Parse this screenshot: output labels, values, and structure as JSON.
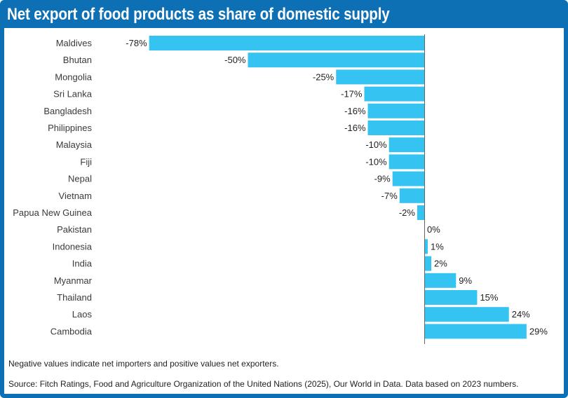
{
  "header": {
    "title": "Net export of food products as share of domestic supply"
  },
  "footer": {
    "note": "Negative values indicate net importers and positive values net exporters.",
    "source": "Source: Fitch Ratings, Food and Agriculture Organization of the United Nations (2025), Our World in Data. Data based on 2023 numbers."
  },
  "colors": {
    "bar": "#35c3f2",
    "frame": "#0d6fb4",
    "axis": "#666666"
  },
  "chart_data": {
    "type": "bar",
    "orientation": "horizontal",
    "title": "Net export of food products as share of domestic supply",
    "xlabel": "",
    "ylabel": "",
    "unit": "%",
    "xlim": [
      -78,
      29
    ],
    "grid": false,
    "legend": "none",
    "categories": [
      "Maldives",
      "Bhutan",
      "Mongolia",
      "Sri Lanka",
      "Bangladesh",
      "Philippines",
      "Malaysia",
      "Fiji",
      "Nepal",
      "Vietnam",
      "Papua New Guinea",
      "Pakistan",
      "Indonesia",
      "India",
      "Myanmar",
      "Thailand",
      "Laos",
      "Cambodia"
    ],
    "values": [
      -78,
      -50,
      -25,
      -17,
      -16,
      -16,
      -10,
      -10,
      -9,
      -7,
      -2,
      0,
      1,
      2,
      9,
      15,
      24,
      29
    ],
    "labels": [
      "-78%",
      "-50%",
      "-25%",
      "-17%",
      "-16%",
      "-16%",
      "-10%",
      "-10%",
      "-9%",
      "-7%",
      "-2%",
      "0%",
      "1%",
      "2%",
      "9%",
      "15%",
      "24%",
      "29%"
    ]
  }
}
